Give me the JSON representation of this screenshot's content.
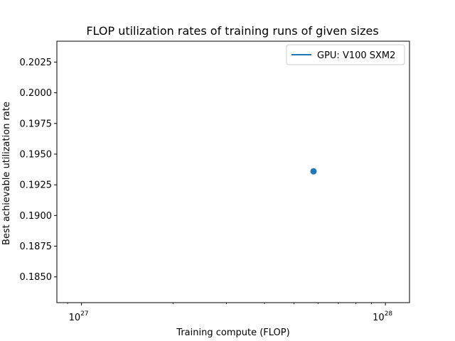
{
  "chart_data": {
    "type": "scatter",
    "title": "FLOP utilization rates of training runs of given sizes",
    "xlabel": "Training compute (FLOP)",
    "ylabel": "Best achievable utilization rate",
    "x_scale": "log",
    "xlim": [
      8.3e+26,
      1.2e+28
    ],
    "ylim": [
      0.1829,
      0.2042
    ],
    "x_ticks": [
      {
        "value": 1e+27,
        "base": "10",
        "exp": "27"
      },
      {
        "value": 1e+28,
        "base": "10",
        "exp": "28"
      }
    ],
    "y_ticks": [
      "0.1850",
      "0.1875",
      "0.1900",
      "0.1925",
      "0.1950",
      "0.1975",
      "0.2000",
      "0.2025"
    ],
    "series": [
      {
        "name": "GPU: V100 SXM2",
        "color": "#1f77b4",
        "points": [
          {
            "x": 5.8e+27,
            "y": 0.1936
          }
        ]
      }
    ],
    "legend": {
      "position": "top-right"
    },
    "grid": false
  }
}
